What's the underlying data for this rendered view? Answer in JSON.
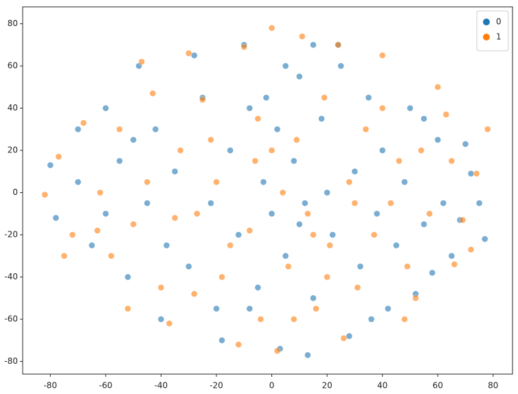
{
  "chart_data": {
    "type": "scatter",
    "xlim": [
      -90,
      87
    ],
    "ylim": [
      -86,
      88
    ],
    "xticks": [
      -80,
      -60,
      -40,
      -20,
      0,
      20,
      40,
      60,
      80
    ],
    "yticks": [
      -80,
      -60,
      -40,
      -20,
      0,
      20,
      40,
      60,
      80
    ],
    "grid": false,
    "legend": "upper right",
    "series": [
      {
        "name": "0",
        "color": "#1f77b4",
        "x": [
          -80,
          -78,
          -70,
          -65,
          -60,
          -55,
          -52,
          -48,
          -45,
          -42,
          -40,
          -35,
          -30,
          -28,
          -25,
          -22,
          -20,
          -15,
          -12,
          -10,
          -8,
          -5,
          -3,
          0,
          2,
          3,
          5,
          8,
          10,
          12,
          13,
          15,
          18,
          20,
          22,
          25,
          28,
          30,
          32,
          35,
          38,
          40,
          42,
          45,
          48,
          50,
          52,
          55,
          58,
          60,
          62,
          65,
          68,
          70,
          72,
          75,
          77,
          -8,
          5,
          -18,
          15,
          -60,
          -70,
          24,
          -38,
          -2,
          36,
          55,
          -50,
          10
        ],
        "values": [
          13,
          -12,
          5,
          -25,
          -10,
          15,
          -40,
          60,
          -5,
          30,
          -60,
          10,
          -35,
          65,
          45,
          -5,
          -55,
          20,
          -20,
          70,
          40,
          -45,
          5,
          -10,
          30,
          -74,
          -30,
          15,
          55,
          -5,
          -77,
          -50,
          35,
          0,
          -20,
          60,
          -68,
          10,
          -35,
          45,
          -10,
          20,
          -55,
          -25,
          5,
          40,
          -48,
          -15,
          -38,
          25,
          -5,
          -30,
          -13,
          23,
          9,
          -5,
          -22,
          -55,
          60,
          -70,
          70,
          40,
          30,
          70,
          -25,
          45,
          -60,
          35,
          25,
          -15
        ]
      },
      {
        "name": "1",
        "color": "#ff7f0e",
        "x": [
          -82,
          -77,
          -72,
          -68,
          -62,
          -58,
          -55,
          -50,
          -47,
          -43,
          -40,
          -37,
          -33,
          -30,
          -27,
          -25,
          -22,
          -18,
          -15,
          -10,
          -8,
          -6,
          -4,
          0,
          2,
          4,
          6,
          9,
          11,
          13,
          16,
          19,
          21,
          24,
          26,
          28,
          31,
          34,
          37,
          40,
          43,
          46,
          49,
          52,
          54,
          57,
          60,
          63,
          66,
          69,
          72,
          74,
          78,
          -12,
          -35,
          -63,
          -45,
          0,
          15,
          30,
          -20,
          40,
          -52,
          20,
          -75,
          65,
          -28,
          8,
          48,
          -5
        ],
        "values": [
          -1,
          17,
          -20,
          33,
          0,
          -30,
          30,
          -15,
          62,
          47,
          -45,
          -62,
          20,
          66,
          -10,
          44,
          25,
          -40,
          -25,
          69,
          -18,
          15,
          -60,
          78,
          -75,
          0,
          -35,
          25,
          74,
          -10,
          -55,
          45,
          -25,
          70,
          -69,
          5,
          -45,
          30,
          -20,
          65,
          -5,
          15,
          -35,
          -50,
          20,
          -10,
          50,
          37,
          -34,
          -13,
          -27,
          9,
          30,
          -72,
          -12,
          -18,
          5,
          20,
          -20,
          -5,
          5,
          40,
          -55,
          -40,
          -30,
          15,
          -48,
          -60,
          -60,
          35
        ]
      }
    ]
  }
}
